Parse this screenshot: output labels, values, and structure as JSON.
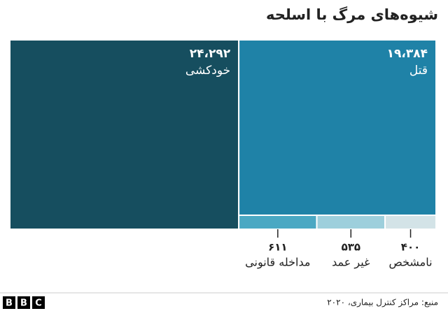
{
  "chart_data": {
    "type": "treemap",
    "title": "شیوه‌های مرگ با اسلحه",
    "categories": [
      "خودکشی",
      "قتل",
      "مداخله قانونی",
      "غیر عمد",
      "نامشخص"
    ],
    "values": [
      24292,
      19384,
      611,
      535,
      400
    ],
    "value_labels": [
      "۲۴،۲۹۲",
      "۱۹،۳۸۴",
      "۶۱۱",
      "۵۳۵",
      "۴۰۰"
    ],
    "colors": [
      "#164e5f",
      "#1f82a7",
      "#4aa8c3",
      "#9dcfdc",
      "#d3e3e7"
    ],
    "source": "منبع: مراکز کنترل بیماری، ۲۰۲۰",
    "logo": [
      "B",
      "B",
      "C"
    ]
  }
}
